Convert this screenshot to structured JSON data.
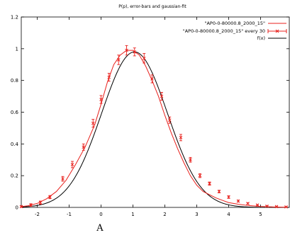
{
  "chart_data": {
    "type": "line",
    "title": "P(p), error-bars and gaussian-fit",
    "caption": "A",
    "xlim": [
      -2.5,
      5.9
    ],
    "ylim": [
      0,
      1.2
    ],
    "xticks": [
      -2,
      -1,
      0,
      1,
      2,
      3,
      4,
      5
    ],
    "yticks": [
      0,
      0.2,
      0.4,
      0.6,
      0.8,
      1,
      1.2
    ],
    "ytick_labels": [
      "0",
      "0.2",
      "0.4",
      "0.6",
      "0.8",
      "1",
      "1.2"
    ],
    "grid": false,
    "legend_position": "top-right",
    "series": [
      {
        "name": "\"AP0-0-80000.8_2000_15\"",
        "style": "line",
        "color": "#e8201c",
        "x": [
          -2.5,
          -2.3,
          -2.0,
          -1.7,
          -1.4,
          -1.1,
          -0.8,
          -0.5,
          -0.2,
          0.0,
          0.2,
          0.4,
          0.6,
          0.8,
          1.0,
          1.2,
          1.4,
          1.6,
          1.8,
          2.0,
          2.2,
          2.4,
          2.6,
          2.8,
          3.0,
          3.2,
          3.4,
          3.6,
          3.8,
          4.0,
          4.3,
          4.6,
          5.0,
          5.4,
          5.8
        ],
        "y": [
          0.005,
          0.01,
          0.025,
          0.055,
          0.1,
          0.17,
          0.27,
          0.38,
          0.52,
          0.65,
          0.79,
          0.9,
          0.96,
          0.99,
          0.99,
          0.96,
          0.89,
          0.8,
          0.7,
          0.58,
          0.47,
          0.37,
          0.28,
          0.2,
          0.14,
          0.1,
          0.08,
          0.06,
          0.045,
          0.03,
          0.02,
          0.012,
          0.006,
          0.003,
          0.001
        ]
      },
      {
        "name": "\"AP0-0-80000.8_2000_15\" every 30",
        "style": "errorbars",
        "color": "#e8201c",
        "x": [
          -2.5,
          -2.2,
          -1.9,
          -1.6,
          -1.2,
          -0.9,
          -0.55,
          -0.25,
          0.0,
          0.25,
          0.55,
          0.8,
          1.05,
          1.35,
          1.6,
          1.9,
          2.15,
          2.5,
          2.8,
          3.1,
          3.4,
          3.7,
          4.0,
          4.3,
          4.6,
          4.9,
          5.2,
          5.5,
          5.8
        ],
        "y": [
          0.005,
          0.015,
          0.03,
          0.065,
          0.18,
          0.27,
          0.38,
          0.53,
          0.68,
          0.82,
          0.93,
          0.99,
          0.98,
          0.94,
          0.81,
          0.7,
          0.55,
          0.44,
          0.3,
          0.2,
          0.15,
          0.1,
          0.065,
          0.04,
          0.025,
          0.015,
          0.008,
          0.005,
          0.003
        ],
        "err": [
          0.005,
          0.008,
          0.01,
          0.01,
          0.015,
          0.02,
          0.02,
          0.025,
          0.025,
          0.025,
          0.03,
          0.03,
          0.025,
          0.03,
          0.025,
          0.025,
          0.02,
          0.02,
          0.015,
          0.012,
          0.01,
          0.008,
          0.008,
          0.006,
          0.005,
          0.004,
          0.003,
          0.003,
          0.002
        ]
      },
      {
        "name": "f(x)",
        "style": "line",
        "color": "#000000",
        "gaussian": {
          "amplitude": 0.98,
          "mean": 1.05,
          "sigma": 1.03
        }
      }
    ]
  }
}
